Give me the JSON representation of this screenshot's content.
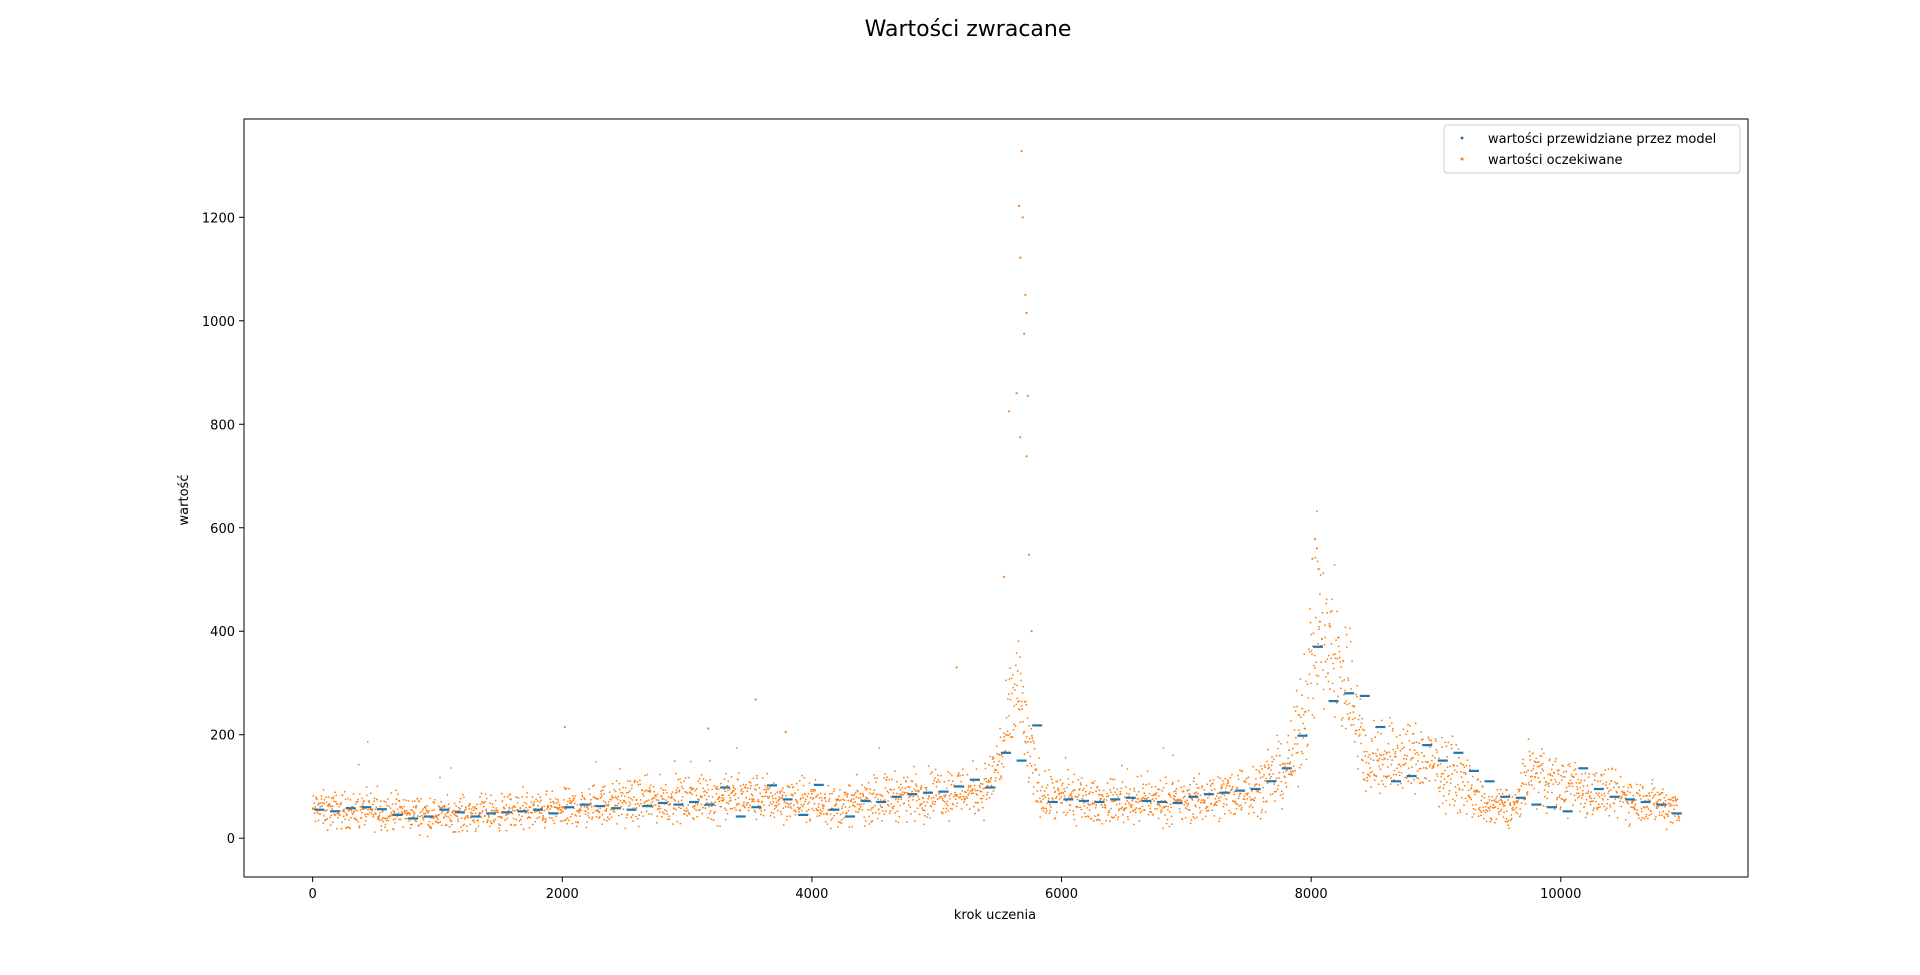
{
  "chart_data": {
    "type": "scatter",
    "title": "Wartości zwracane",
    "xlabel": "krok uczenia",
    "ylabel": "wartość",
    "xlim": [
      -550,
      11500
    ],
    "ylim": [
      -75,
      1390
    ],
    "xticks": [
      0,
      2000,
      4000,
      6000,
      8000,
      10000
    ],
    "xtick_labels": [
      "0",
      "2000",
      "4000",
      "6000",
      "8000",
      "10000"
    ],
    "yticks": [
      0,
      200,
      400,
      600,
      800,
      1000,
      1200
    ],
    "ytick_labels": [
      "0",
      "200",
      "400",
      "600",
      "800",
      "1000",
      "1200"
    ],
    "grid": false,
    "legend_position": "top-right",
    "colors": {
      "predicted": "#1f77b4",
      "expected": "#ff7f0e"
    },
    "series": [
      {
        "name": "wartości przewidziane przez model",
        "color": "#1f77b4",
        "x": [
          0,
          125,
          250,
          375,
          500,
          625,
          750,
          875,
          1000,
          1125,
          1250,
          1375,
          1500,
          1625,
          1750,
          1875,
          2000,
          2125,
          2250,
          2375,
          2500,
          2625,
          2750,
          2875,
          3000,
          3125,
          3250,
          3375,
          3500,
          3625,
          3750,
          3875,
          4000,
          4125,
          4250,
          4375,
          4500,
          4625,
          4750,
          4875,
          5000,
          5125,
          5250,
          5375,
          5500,
          5625,
          5750,
          5875,
          6000,
          6125,
          6250,
          6375,
          6500,
          6625,
          6750,
          6875,
          7000,
          7125,
          7250,
          7375,
          7500,
          7625,
          7750,
          7875,
          8000,
          8125,
          8250,
          8375,
          8500,
          8625,
          8750,
          8875,
          9000,
          9125,
          9250,
          9375,
          9500,
          9625,
          9750,
          9875,
          10000,
          10125,
          10250,
          10375,
          10500,
          10625,
          10750,
          10875
        ],
        "y": [
          55,
          52,
          58,
          60,
          56,
          45,
          38,
          42,
          55,
          50,
          42,
          48,
          50,
          52,
          55,
          48,
          60,
          65,
          62,
          58,
          55,
          62,
          68,
          65,
          70,
          65,
          98,
          42,
          60,
          102,
          75,
          45,
          103,
          55,
          42,
          72,
          70,
          80,
          85,
          88,
          90,
          100,
          113,
          98,
          165,
          150,
          218,
          70,
          75,
          72,
          70,
          75,
          78,
          72,
          70,
          68,
          80,
          85,
          88,
          92,
          95,
          110,
          135,
          198,
          370,
          265,
          280,
          275,
          215,
          110,
          120,
          180,
          150,
          165,
          130,
          110,
          80,
          78,
          65,
          60,
          52,
          135,
          95,
          80,
          75,
          70,
          65,
          48
        ]
      },
      {
        "name": "wartości oczekiwane",
        "color": "#ff7f0e",
        "baseline_x": [
          0,
          600,
          1000,
          1500,
          2000,
          2500,
          3000,
          3500,
          4000,
          4200,
          4600,
          5000,
          5400,
          5550,
          5650,
          5750,
          5850,
          6200,
          6800,
          7000,
          7500,
          7700,
          7850,
          7950,
          8050,
          8150,
          8300,
          8450,
          8600,
          8900,
          9200,
          9400,
          9650,
          9750,
          10000,
          10500,
          10950
        ],
        "baseline_y": [
          55,
          52,
          45,
          50,
          55,
          70,
          75,
          80,
          70,
          60,
          80,
          88,
          95,
          180,
          300,
          150,
          80,
          70,
          72,
          68,
          95,
          110,
          150,
          260,
          400,
          350,
          300,
          140,
          160,
          150,
          110,
          60,
          60,
          130,
          100,
          80,
          60
        ],
        "spikes": [
          {
            "x": 2020,
            "y": 215
          },
          {
            "x": 3170,
            "y": 212
          },
          {
            "x": 3550,
            "y": 268
          },
          {
            "x": 3790,
            "y": 205
          },
          {
            "x": 5160,
            "y": 330
          },
          {
            "x": 5540,
            "y": 505
          },
          {
            "x": 5580,
            "y": 825
          },
          {
            "x": 5640,
            "y": 860
          },
          {
            "x": 5660,
            "y": 1222
          },
          {
            "x": 5670,
            "y": 1122
          },
          {
            "x": 5680,
            "y": 1328
          },
          {
            "x": 5690,
            "y": 1200
          },
          {
            "x": 5700,
            "y": 975
          },
          {
            "x": 5710,
            "y": 1050
          },
          {
            "x": 5720,
            "y": 1015
          },
          {
            "x": 5730,
            "y": 855
          },
          {
            "x": 5670,
            "y": 775
          },
          {
            "x": 5720,
            "y": 738
          },
          {
            "x": 5740,
            "y": 548
          },
          {
            "x": 5760,
            "y": 400
          },
          {
            "x": 8030,
            "y": 578
          },
          {
            "x": 8045,
            "y": 560
          },
          {
            "x": 8010,
            "y": 540
          },
          {
            "x": 8060,
            "y": 520
          }
        ]
      }
    ]
  }
}
